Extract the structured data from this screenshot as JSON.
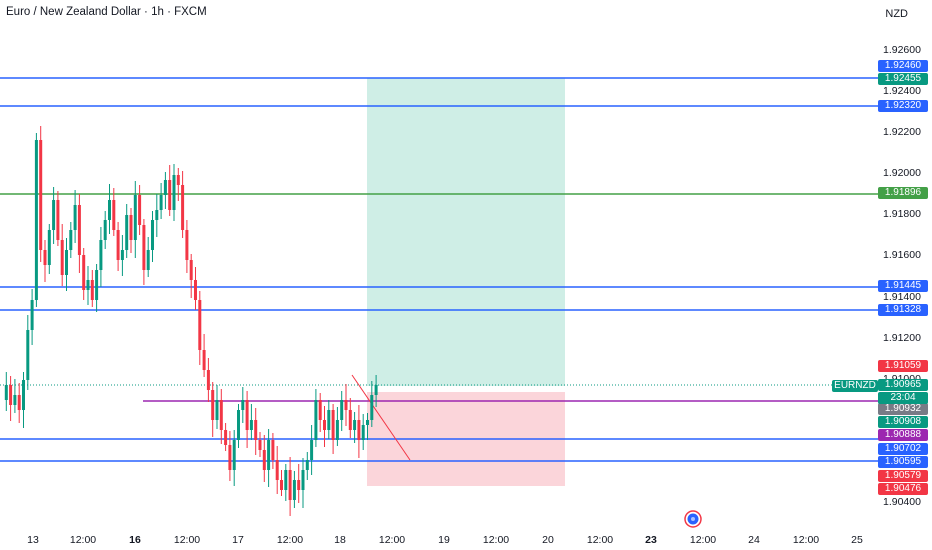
{
  "header": {
    "title": "Euro / New Zealand Dollar · 1h · FXCM",
    "currency": "NZD"
  },
  "symbol_tag": "EURNZD",
  "countdown": "23:04",
  "price_axis": {
    "ticks": [
      "1.92600",
      "1.92400",
      "1.92200",
      "1.92000",
      "1.91800",
      "1.91600",
      "1.91400",
      "1.91200",
      "1.91000",
      "1.90400"
    ]
  },
  "price_tags": [
    {
      "value": "1.92460",
      "color": "#2962ff"
    },
    {
      "value": "1.92455",
      "color": "#089981"
    },
    {
      "value": "1.92320",
      "color": "#2962ff"
    },
    {
      "value": "1.91896",
      "color": "#43a047"
    },
    {
      "value": "1.91445",
      "color": "#2962ff"
    },
    {
      "value": "1.91328",
      "color": "#2962ff"
    },
    {
      "value": "1.91059",
      "color": "#f23645"
    },
    {
      "value": "1.90965",
      "color": "#089981"
    },
    {
      "value": "1.90932",
      "color": "#787b86"
    },
    {
      "value": "1.90908",
      "color": "#089981"
    },
    {
      "value": "1.90888",
      "color": "#9c27b0"
    },
    {
      "value": "1.90702",
      "color": "#2962ff"
    },
    {
      "value": "1.90595",
      "color": "#2962ff"
    },
    {
      "value": "1.90579",
      "color": "#f23645"
    },
    {
      "value": "1.90476",
      "color": "#f23645"
    }
  ],
  "time_axis": [
    "13",
    "12:00",
    "16",
    "12:00",
    "17",
    "12:00",
    "18",
    "12:00",
    "19",
    "12:00",
    "20",
    "12:00",
    "23",
    "12:00",
    "24",
    "12:00",
    "25"
  ],
  "colors": {
    "up": "#089981",
    "down": "#f23645",
    "profit": "#cfeee6",
    "loss": "#fbd5da",
    "level": "#2962ff",
    "green_level": "#43a047",
    "magenta": "#9c27b0"
  },
  "icons": {
    "target": "target-icon"
  }
}
